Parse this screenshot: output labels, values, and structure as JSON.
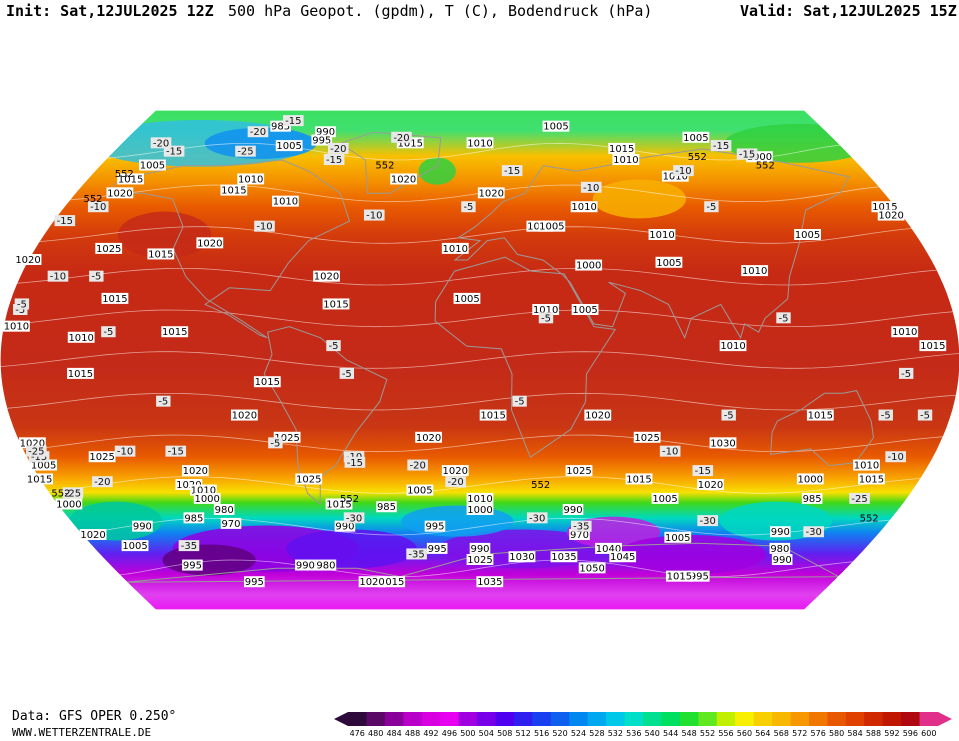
{
  "header": {
    "init": "Init: Sat,12JUL2025 12Z",
    "title": "500 hPa Geopot. (gpdm), T (C), Bodendruck (hPa)",
    "valid": "Valid: Sat,12JUL2025 15Z"
  },
  "footer": {
    "data_source": "Data: GFS OPER 0.250°",
    "website": "WWW.WETTERZENTRALE.DE"
  },
  "map": {
    "projection": "Robinson world",
    "pressure_labels": [
      {
        "text": "985",
        "lon": -105,
        "lat": 84
      },
      {
        "text": "990",
        "lon": -80,
        "lat": 82
      },
      {
        "text": "995",
        "lon": -80,
        "lat": 79
      },
      {
        "text": "1005",
        "lon": -95,
        "lat": 77
      },
      {
        "text": "1015",
        "lon": -35,
        "lat": 78
      },
      {
        "text": "1010",
        "lon": 0,
        "lat": 78
      },
      {
        "text": "1005",
        "lon": 40,
        "lat": 84
      },
      {
        "text": "1005",
        "lon": 110,
        "lat": 80
      },
      {
        "text": "1000",
        "lon": 135,
        "lat": 73
      },
      {
        "text": "1015",
        "lon": 70,
        "lat": 76
      },
      {
        "text": "1010",
        "lon": 70,
        "lat": 72
      },
      {
        "text": "1015",
        "lon": -160,
        "lat": 65
      },
      {
        "text": "1005",
        "lon": -155,
        "lat": 70
      },
      {
        "text": "1020",
        "lon": -160,
        "lat": 60
      },
      {
        "text": "1010",
        "lon": -105,
        "lat": 65
      },
      {
        "text": "1015",
        "lon": -110,
        "lat": 61
      },
      {
        "text": "1010",
        "lon": -85,
        "lat": 57
      },
      {
        "text": "1020",
        "lon": -35,
        "lat": 65
      },
      {
        "text": "1020",
        "lon": 5,
        "lat": 60
      },
      {
        "text": "1010",
        "lon": 45,
        "lat": 55
      },
      {
        "text": "1010",
        "lon": 90,
        "lat": 66
      },
      {
        "text": "1015",
        "lon": 175,
        "lat": 55
      },
      {
        "text": "1020",
        "lon": 175,
        "lat": 52
      },
      {
        "text": "1005",
        "lon": 135,
        "lat": 45
      },
      {
        "text": "1010",
        "lon": 75,
        "lat": 45
      },
      {
        "text": "1010",
        "lon": 25,
        "lat": 48
      },
      {
        "text": "1005",
        "lon": 30,
        "lat": 48
      },
      {
        "text": "1010",
        "lon": -10,
        "lat": 40
      },
      {
        "text": "1025",
        "lon": -150,
        "lat": 40
      },
      {
        "text": "1015",
        "lon": -128,
        "lat": 38
      },
      {
        "text": "1020",
        "lon": -110,
        "lat": 42
      },
      {
        "text": "1020",
        "lon": -180,
        "lat": 36
      },
      {
        "text": "1000",
        "lon": 43,
        "lat": 34
      },
      {
        "text": "1005",
        "lon": 75,
        "lat": 35
      },
      {
        "text": "1010",
        "lon": 108,
        "lat": 32
      },
      {
        "text": "1020",
        "lon": -60,
        "lat": 30
      },
      {
        "text": "1015",
        "lon": -140,
        "lat": 22
      },
      {
        "text": "1015",
        "lon": -55,
        "lat": 20
      },
      {
        "text": "1005",
        "lon": -5,
        "lat": 22
      },
      {
        "text": "1010",
        "lon": 25,
        "lat": 18
      },
      {
        "text": "1005",
        "lon": 40,
        "lat": 18
      },
      {
        "text": "1015",
        "lon": -115,
        "lat": 10
      },
      {
        "text": "1010",
        "lon": -175,
        "lat": 12
      },
      {
        "text": "1015",
        "lon": 170,
        "lat": 5
      },
      {
        "text": "1010",
        "lon": 160,
        "lat": 10
      },
      {
        "text": "1010",
        "lon": 210,
        "lat": 8
      },
      {
        "text": "1010",
        "lon": 95,
        "lat": 5
      },
      {
        "text": "1015",
        "lon": -150,
        "lat": -5
      },
      {
        "text": "1015",
        "lon": -80,
        "lat": -8
      },
      {
        "text": "1020",
        "lon": -90,
        "lat": -20
      },
      {
        "text": "1015",
        "lon": 5,
        "lat": -20
      },
      {
        "text": "1020",
        "lon": 45,
        "lat": -20
      },
      {
        "text": "1015",
        "lon": 130,
        "lat": -20
      },
      {
        "text": "1020",
        "lon": -20,
        "lat": -28
      },
      {
        "text": "1025",
        "lon": -75,
        "lat": -28
      },
      {
        "text": "1025",
        "lon": 65,
        "lat": -28
      },
      {
        "text": "1030",
        "lon": 95,
        "lat": -30
      },
      {
        "text": "1020",
        "lon": -175,
        "lat": -30
      },
      {
        "text": "1025",
        "lon": -150,
        "lat": -35
      },
      {
        "text": "1010",
        "lon": 155,
        "lat": -38
      },
      {
        "text": "1020",
        "lon": -115,
        "lat": -40
      },
      {
        "text": "1025",
        "lon": -70,
        "lat": -43
      },
      {
        "text": "1020",
        "lon": -10,
        "lat": -40
      },
      {
        "text": "1025",
        "lon": 40,
        "lat": -40
      },
      {
        "text": "1015",
        "lon": 65,
        "lat": -43
      },
      {
        "text": "1020",
        "lon": 95,
        "lat": -45
      },
      {
        "text": "1015",
        "lon": -180,
        "lat": -43
      },
      {
        "text": "1020",
        "lon": -120,
        "lat": -45
      },
      {
        "text": "1010",
        "lon": -115,
        "lat": -47
      },
      {
        "text": "1000",
        "lon": -115,
        "lat": -50
      },
      {
        "text": "1015",
        "lon": -60,
        "lat": -52
      },
      {
        "text": "985",
        "lon": -40,
        "lat": -53
      },
      {
        "text": "1005",
        "lon": -25,
        "lat": -47
      },
      {
        "text": "1010",
        "lon": 0,
        "lat": -50
      },
      {
        "text": "1000",
        "lon": 0,
        "lat": -54
      },
      {
        "text": "1005",
        "lon": 78,
        "lat": -50
      },
      {
        "text": "1000",
        "lon": 135,
        "lat": -43
      },
      {
        "text": "985",
        "lon": 140,
        "lat": -50
      },
      {
        "text": "1015",
        "lon": 160,
        "lat": -43
      },
      {
        "text": "1005",
        "lon": 185,
        "lat": -38
      },
      {
        "text": "1000",
        "lon": 185,
        "lat": -52
      },
      {
        "text": "985",
        "lon": -125,
        "lat": -57
      },
      {
        "text": "980",
        "lon": -110,
        "lat": -54
      },
      {
        "text": "970",
        "lon": -110,
        "lat": -59
      },
      {
        "text": "990",
        "lon": -150,
        "lat": -60
      },
      {
        "text": "1020",
        "lon": -175,
        "lat": -63
      },
      {
        "text": "1005",
        "lon": -160,
        "lat": -67
      },
      {
        "text": "990",
        "lon": -60,
        "lat": -60
      },
      {
        "text": "995",
        "lon": -20,
        "lat": -60
      },
      {
        "text": "995",
        "lon": -20,
        "lat": -68
      },
      {
        "text": "990",
        "lon": 0,
        "lat": -68
      },
      {
        "text": "970",
        "lon": 45,
        "lat": -63
      },
      {
        "text": "990",
        "lon": 40,
        "lat": -54
      },
      {
        "text": "1005",
        "lon": 90,
        "lat": -64
      },
      {
        "text": "990",
        "lon": 135,
        "lat": -62
      },
      {
        "text": "980",
        "lon": 140,
        "lat": -68
      },
      {
        "text": "990",
        "lon": 145,
        "lat": -72
      },
      {
        "text": "995",
        "lon": -140,
        "lat": -74
      },
      {
        "text": "995",
        "lon": -115,
        "lat": -80
      },
      {
        "text": "990",
        "lon": -85,
        "lat": -74
      },
      {
        "text": "980",
        "lon": -75,
        "lat": -74
      },
      {
        "text": "1030",
        "lon": 20,
        "lat": -71
      },
      {
        "text": "1035",
        "lon": 40,
        "lat": -71
      },
      {
        "text": "1040",
        "lon": 60,
        "lat": -68
      },
      {
        "text": "1045",
        "lon": 68,
        "lat": -71
      },
      {
        "text": "1050",
        "lon": 55,
        "lat": -75
      },
      {
        "text": "1035",
        "lon": 5,
        "lat": -80
      },
      {
        "text": "1025",
        "lon": 0,
        "lat": -72
      },
      {
        "text": "1015",
        "lon": -45,
        "lat": -80
      },
      {
        "text": "1020",
        "lon": -55,
        "lat": -80
      },
      {
        "text": "995",
        "lon": 110,
        "lat": -78
      },
      {
        "text": "1015",
        "lon": 100,
        "lat": -78
      }
    ],
    "temperature_labels": [
      {
        "text": "-15",
        "lon": -100,
        "lat": 86
      },
      {
        "text": "-20",
        "lon": -115,
        "lat": 82
      },
      {
        "text": "-25",
        "lon": -115,
        "lat": 75
      },
      {
        "text": "-20",
        "lon": -70,
        "lat": 76
      },
      {
        "text": "-20",
        "lon": -40,
        "lat": 80
      },
      {
        "text": "-15",
        "lon": -70,
        "lat": 72
      },
      {
        "text": "-15",
        "lon": -150,
        "lat": 75
      },
      {
        "text": "-20",
        "lon": -160,
        "lat": 78
      },
      {
        "text": "-15",
        "lon": 15,
        "lat": 68
      },
      {
        "text": "-10",
        "lon": 95,
        "lat": 68
      },
      {
        "text": "-15",
        "lon": 130,
        "lat": 74
      },
      {
        "text": "-15",
        "lon": 120,
        "lat": 77
      },
      {
        "text": "-10",
        "lon": -165,
        "lat": 55
      },
      {
        "text": "-15",
        "lon": -175,
        "lat": 50
      },
      {
        "text": "-10",
        "lon": -90,
        "lat": 48
      },
      {
        "text": "-10",
        "lon": -45,
        "lat": 52
      },
      {
        "text": "-5",
        "lon": -5,
        "lat": 55
      },
      {
        "text": "-10",
        "lon": 50,
        "lat": 62
      },
      {
        "text": "-10",
        "lon": -165,
        "lat": 30
      },
      {
        "text": "-5",
        "lon": -150,
        "lat": 30
      },
      {
        "text": "-5",
        "lon": 100,
        "lat": 55
      },
      {
        "text": "-5",
        "lon": 185,
        "lat": 18
      },
      {
        "text": "-5",
        "lon": -175,
        "lat": 20
      },
      {
        "text": "-5",
        "lon": -140,
        "lat": 10
      },
      {
        "text": "-5",
        "lon": -55,
        "lat": 5
      },
      {
        "text": "-5",
        "lon": 25,
        "lat": 15
      },
      {
        "text": "-5",
        "lon": 115,
        "lat": 15
      },
      {
        "text": "-5",
        "lon": 160,
        "lat": -5
      },
      {
        "text": "-5",
        "lon": -50,
        "lat": -5
      },
      {
        "text": "-5",
        "lon": -120,
        "lat": -15
      },
      {
        "text": "-5",
        "lon": -80,
        "lat": -30
      },
      {
        "text": "-5",
        "lon": 15,
        "lat": -15
      },
      {
        "text": "-5",
        "lon": 95,
        "lat": -20
      },
      {
        "text": "-5",
        "lon": 155,
        "lat": -20
      },
      {
        "text": "-5",
        "lon": 170,
        "lat": -20
      },
      {
        "text": "-10",
        "lon": -140,
        "lat": -33
      },
      {
        "text": "-15",
        "lon": -120,
        "lat": -33
      },
      {
        "text": "-15",
        "lon": -175,
        "lat": -35
      },
      {
        "text": "-10",
        "lon": -50,
        "lat": -35
      },
      {
        "text": "-15",
        "lon": -50,
        "lat": -37
      },
      {
        "text": "-20",
        "lon": -25,
        "lat": -38
      },
      {
        "text": "-10",
        "lon": 75,
        "lat": -33
      },
      {
        "text": "-15",
        "lon": 90,
        "lat": -40
      },
      {
        "text": "-10",
        "lon": 165,
        "lat": -35
      },
      {
        "text": "-25",
        "lon": 185,
        "lat": -33
      },
      {
        "text": "-20",
        "lon": -155,
        "lat": -44
      },
      {
        "text": "-25",
        "lon": -170,
        "lat": -48
      },
      {
        "text": "-20",
        "lon": -10,
        "lat": -44
      },
      {
        "text": "-25",
        "lon": 160,
        "lat": -50
      },
      {
        "text": "-30",
        "lon": -55,
        "lat": -57
      },
      {
        "text": "-30",
        "lon": 25,
        "lat": -57
      },
      {
        "text": "-35",
        "lon": 45,
        "lat": -60
      },
      {
        "text": "-30",
        "lon": 100,
        "lat": -58
      },
      {
        "text": "-30",
        "lon": 150,
        "lat": -62
      },
      {
        "text": "-35",
        "lon": -135,
        "lat": -67
      },
      {
        "text": "-35",
        "lon": -30,
        "lat": -70
      }
    ],
    "contour_552_labels": [
      {
        "text": "552",
        "lon": -165,
        "lat": 67
      },
      {
        "text": "552",
        "lon": -170,
        "lat": 58
      },
      {
        "text": "552",
        "lon": -45,
        "lat": 70
      },
      {
        "text": "552",
        "lon": 105,
        "lat": 73
      },
      {
        "text": "552",
        "lon": 135,
        "lat": 70
      },
      {
        "text": "552",
        "lon": 25,
        "lat": -45
      },
      {
        "text": "552",
        "lon": -175,
        "lat": -48
      },
      {
        "text": "552",
        "lon": -55,
        "lat": -50
      },
      {
        "text": "552",
        "lon": 170,
        "lat": -57
      }
    ]
  },
  "scale": {
    "unit": "gpdm",
    "labels": [
      "476",
      "480",
      "484",
      "488",
      "492",
      "496",
      "500",
      "504",
      "508",
      "512",
      "516",
      "520",
      "524",
      "528",
      "532",
      "536",
      "540",
      "544",
      "548",
      "552",
      "556",
      "560",
      "564",
      "568",
      "572",
      "576",
      "580",
      "584",
      "588",
      "592",
      "596",
      "600"
    ],
    "colors": [
      "#2e0a3a",
      "#5a0a66",
      "#8a009a",
      "#b800c8",
      "#d800e0",
      "#e800f0",
      "#a000e0",
      "#7800e8",
      "#5000f0",
      "#3020f0",
      "#1840f0",
      "#1060f0",
      "#0088f0",
      "#00a8f0",
      "#00c8e8",
      "#00e0c8",
      "#00e090",
      "#00e060",
      "#20e030",
      "#60e820",
      "#c0f000",
      "#f8f000",
      "#f8d000",
      "#f8b800",
      "#f89800",
      "#f07800",
      "#e85800",
      "#e04000",
      "#d02800",
      "#c01800",
      "#b00810",
      "#e0308a"
    ]
  }
}
